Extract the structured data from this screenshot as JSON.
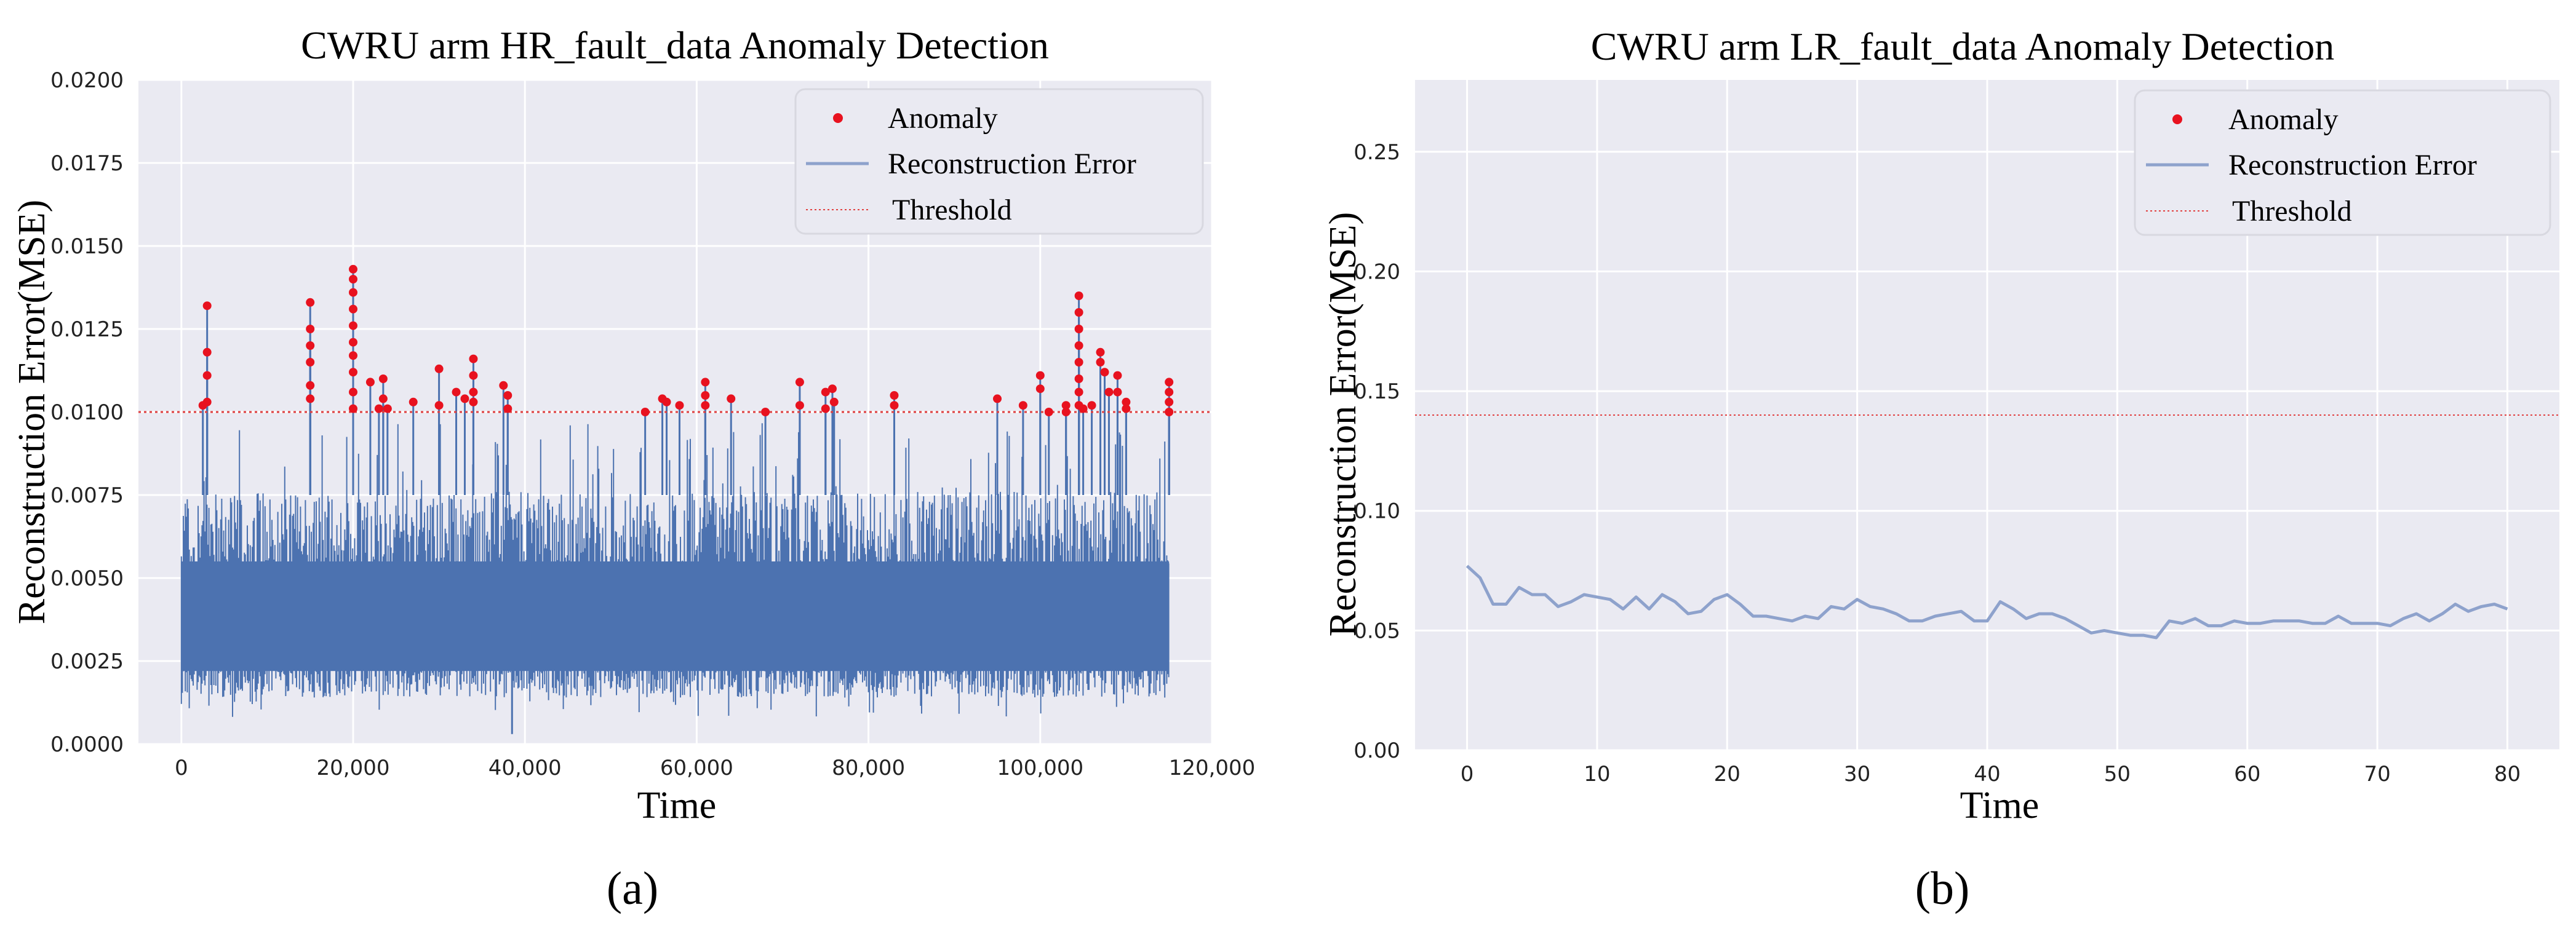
{
  "chart_data": [
    {
      "type": "line",
      "title": "CWRU arm HR_fault_data Anomaly Detection",
      "xlabel": "Time",
      "ylabel": "Reconstruction Error(MSE)",
      "panel_label": "(a)",
      "xlim": [
        -5000,
        120000
      ],
      "ylim": [
        0,
        0.02
      ],
      "xticks": [
        0,
        20000,
        40000,
        60000,
        80000,
        100000,
        120000
      ],
      "xtick_labels": [
        "0",
        "20,000",
        "40,000",
        "60,000",
        "80,000",
        "100,000",
        "120,000"
      ],
      "yticks": [
        0,
        0.0025,
        0.005,
        0.0075,
        0.01,
        0.0125,
        0.015,
        0.0175,
        0.02
      ],
      "ytick_labels": [
        "0.0000",
        "0.0025",
        "0.0050",
        "0.0075",
        "0.0100",
        "0.0125",
        "0.0150",
        "0.0175",
        "0.0200"
      ],
      "threshold": 0.01,
      "series_summary": {
        "name": "Reconstruction Error",
        "x_range": [
          0,
          115000
        ],
        "n_points": 115000,
        "typical_min": 0.0015,
        "typical_max": 0.0085,
        "overall_min": 0.0003,
        "overall_max": 0.0143
      },
      "anomalies": [
        {
          "x": 3000,
          "y": 0.0132
        },
        {
          "x": 3000,
          "y": 0.0118
        },
        {
          "x": 3000,
          "y": 0.0111
        },
        {
          "x": 3000,
          "y": 0.0103
        },
        {
          "x": 2500,
          "y": 0.0102
        },
        {
          "x": 15000,
          "y": 0.0133
        },
        {
          "x": 15000,
          "y": 0.0125
        },
        {
          "x": 15000,
          "y": 0.012
        },
        {
          "x": 15000,
          "y": 0.0115
        },
        {
          "x": 15000,
          "y": 0.0108
        },
        {
          "x": 15000,
          "y": 0.0104
        },
        {
          "x": 20000,
          "y": 0.0143
        },
        {
          "x": 20000,
          "y": 0.014
        },
        {
          "x": 20000,
          "y": 0.0136
        },
        {
          "x": 20000,
          "y": 0.0131
        },
        {
          "x": 20000,
          "y": 0.0126
        },
        {
          "x": 20000,
          "y": 0.0121
        },
        {
          "x": 20000,
          "y": 0.0117
        },
        {
          "x": 20000,
          "y": 0.0112
        },
        {
          "x": 20000,
          "y": 0.0106
        },
        {
          "x": 20000,
          "y": 0.0101
        },
        {
          "x": 22000,
          "y": 0.0109
        },
        {
          "x": 23500,
          "y": 0.011
        },
        {
          "x": 23500,
          "y": 0.0104
        },
        {
          "x": 24000,
          "y": 0.0101
        },
        {
          "x": 23000,
          "y": 0.0101
        },
        {
          "x": 27000,
          "y": 0.0103
        },
        {
          "x": 30000,
          "y": 0.0113
        },
        {
          "x": 30000,
          "y": 0.0102
        },
        {
          "x": 32000,
          "y": 0.0106
        },
        {
          "x": 33000,
          "y": 0.0104
        },
        {
          "x": 34000,
          "y": 0.0116
        },
        {
          "x": 34000,
          "y": 0.0111
        },
        {
          "x": 34000,
          "y": 0.0106
        },
        {
          "x": 34000,
          "y": 0.0103
        },
        {
          "x": 37500,
          "y": 0.0108
        },
        {
          "x": 38000,
          "y": 0.0105
        },
        {
          "x": 38000,
          "y": 0.0101
        },
        {
          "x": 54000,
          "y": 0.01
        },
        {
          "x": 56000,
          "y": 0.0104
        },
        {
          "x": 56500,
          "y": 0.0103
        },
        {
          "x": 58000,
          "y": 0.0102
        },
        {
          "x": 61000,
          "y": 0.0109
        },
        {
          "x": 61000,
          "y": 0.0105
        },
        {
          "x": 61000,
          "y": 0.0102
        },
        {
          "x": 64000,
          "y": 0.0104
        },
        {
          "x": 68000,
          "y": 0.01
        },
        {
          "x": 72000,
          "y": 0.0109
        },
        {
          "x": 72000,
          "y": 0.0102
        },
        {
          "x": 75000,
          "y": 0.0106
        },
        {
          "x": 75000,
          "y": 0.0101
        },
        {
          "x": 75800,
          "y": 0.0107
        },
        {
          "x": 76000,
          "y": 0.0103
        },
        {
          "x": 83000,
          "y": 0.0105
        },
        {
          "x": 83000,
          "y": 0.0102
        },
        {
          "x": 95000,
          "y": 0.0104
        },
        {
          "x": 98000,
          "y": 0.0102
        },
        {
          "x": 100000,
          "y": 0.0111
        },
        {
          "x": 100000,
          "y": 0.0107
        },
        {
          "x": 101000,
          "y": 0.01
        },
        {
          "x": 103000,
          "y": 0.0102
        },
        {
          "x": 103000,
          "y": 0.01
        },
        {
          "x": 104500,
          "y": 0.0135
        },
        {
          "x": 104500,
          "y": 0.013
        },
        {
          "x": 104500,
          "y": 0.0125
        },
        {
          "x": 104500,
          "y": 0.012
        },
        {
          "x": 104500,
          "y": 0.0115
        },
        {
          "x": 104500,
          "y": 0.011
        },
        {
          "x": 104500,
          "y": 0.0106
        },
        {
          "x": 104500,
          "y": 0.0102
        },
        {
          "x": 105000,
          "y": 0.0101
        },
        {
          "x": 106000,
          "y": 0.0102
        },
        {
          "x": 107000,
          "y": 0.0118
        },
        {
          "x": 107000,
          "y": 0.0115
        },
        {
          "x": 107500,
          "y": 0.0112
        },
        {
          "x": 108000,
          "y": 0.0106
        },
        {
          "x": 109000,
          "y": 0.0111
        },
        {
          "x": 109000,
          "y": 0.0106
        },
        {
          "x": 110000,
          "y": 0.0103
        },
        {
          "x": 110000,
          "y": 0.0101
        },
        {
          "x": 115000,
          "y": 0.0109
        },
        {
          "x": 115000,
          "y": 0.0106
        },
        {
          "x": 115000,
          "y": 0.0103
        },
        {
          "x": 115000,
          "y": 0.01
        }
      ],
      "legend": {
        "position": "upper-right",
        "entries": [
          "Anomaly",
          "Reconstruction Error",
          "Threshold"
        ]
      }
    },
    {
      "type": "line",
      "title": "CWRU arm LR_fault_data Anomaly Detection",
      "xlabel": "Time",
      "ylabel": "Reconstruction Error(MSE)",
      "panel_label": "(b)",
      "xlim": [
        -4,
        84
      ],
      "ylim": [
        0,
        0.28
      ],
      "xticks": [
        0,
        10,
        20,
        30,
        40,
        50,
        60,
        70,
        80
      ],
      "xtick_labels": [
        "0",
        "10",
        "20",
        "30",
        "40",
        "50",
        "60",
        "70",
        "80"
      ],
      "yticks": [
        0,
        0.05,
        0.1,
        0.15,
        0.2,
        0.25
      ],
      "ytick_labels": [
        "0.00",
        "0.05",
        "0.10",
        "0.15",
        "0.20",
        "0.25"
      ],
      "threshold": 0.14,
      "series": [
        {
          "name": "Reconstruction Error",
          "x": [
            0,
            1,
            2,
            3,
            4,
            5,
            6,
            7,
            8,
            9,
            10,
            11,
            12,
            13,
            14,
            15,
            16,
            17,
            18,
            19,
            20,
            21,
            22,
            23,
            24,
            25,
            26,
            27,
            28,
            29,
            30,
            31,
            32,
            33,
            34,
            35,
            36,
            37,
            38,
            39,
            40,
            41,
            42,
            43,
            44,
            45,
            46,
            47,
            48,
            49,
            50,
            51,
            52,
            53,
            54,
            55,
            56,
            57,
            58,
            59,
            60,
            61,
            62,
            63,
            64,
            65,
            66,
            67,
            68,
            69,
            70,
            71,
            72,
            73,
            74,
            75,
            76,
            77,
            78,
            79,
            80
          ],
          "y": [
            0.077,
            0.072,
            0.061,
            0.061,
            0.068,
            0.065,
            0.065,
            0.06,
            0.062,
            0.065,
            0.064,
            0.063,
            0.059,
            0.064,
            0.059,
            0.065,
            0.062,
            0.057,
            0.058,
            0.063,
            0.065,
            0.061,
            0.056,
            0.056,
            0.055,
            0.054,
            0.056,
            0.055,
            0.06,
            0.059,
            0.063,
            0.06,
            0.059,
            0.057,
            0.054,
            0.054,
            0.056,
            0.057,
            0.058,
            0.054,
            0.054,
            0.062,
            0.059,
            0.055,
            0.057,
            0.057,
            0.055,
            0.052,
            0.049,
            0.05,
            0.049,
            0.048,
            0.048,
            0.047,
            0.054,
            0.053,
            0.055,
            0.052,
            0.052,
            0.054,
            0.053,
            0.053,
            0.054,
            0.054,
            0.054,
            0.053,
            0.053,
            0.056,
            0.053,
            0.053,
            0.053,
            0.052,
            0.055,
            0.057,
            0.054,
            0.057,
            0.061,
            0.058,
            0.06,
            0.061,
            0.059
          ]
        }
      ],
      "anomalies": [],
      "legend": {
        "position": "upper-right",
        "entries": [
          "Anomaly",
          "Reconstruction Error",
          "Threshold"
        ]
      }
    }
  ],
  "colors": {
    "panel_bg": "#EAEAF2",
    "grid": "#FFFFFF",
    "line_a": "#4C72B0",
    "line_b": "#8EA2CC",
    "anomaly": "#E8121F",
    "threshold": "#E04040"
  }
}
